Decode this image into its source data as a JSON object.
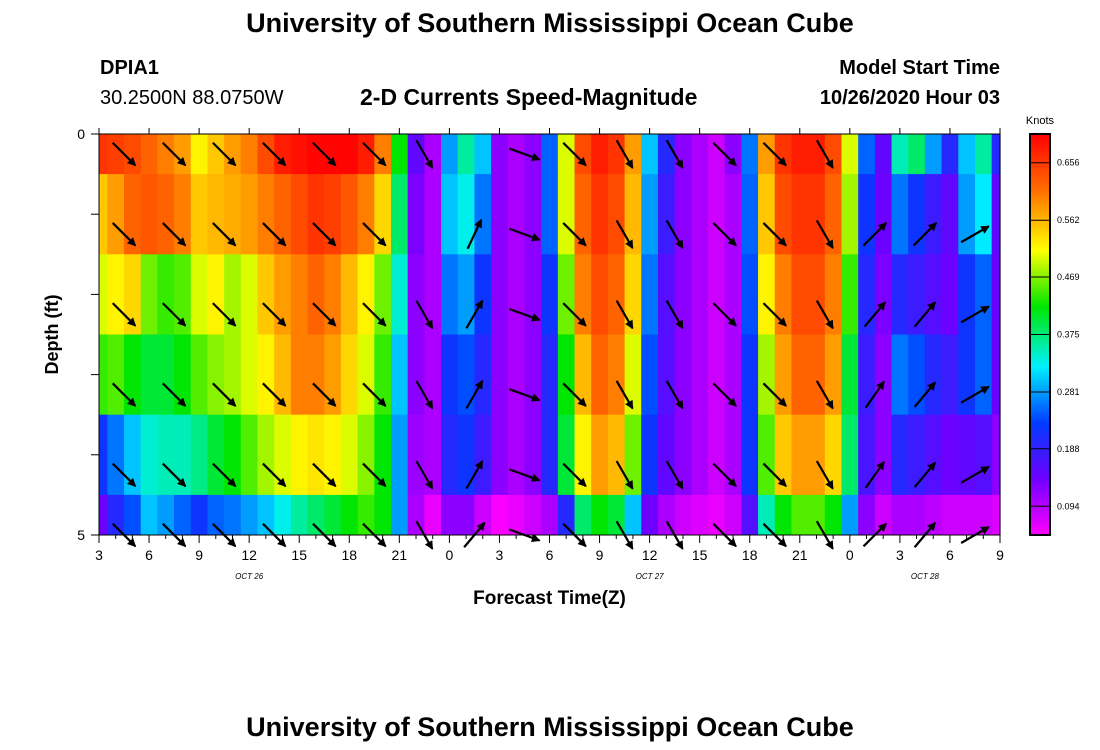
{
  "page": {
    "title": "University of Southern Mississippi Ocean Cube",
    "footer_title": "University of Southern Mississippi Ocean Cube",
    "station": "DPIA1",
    "coords": "30.2500N 88.0750W",
    "plot_title": "2-D Currents Speed-Magnitude",
    "model_start_label": "Model Start Time",
    "model_start_value": "10/26/2020 Hour 03"
  },
  "chart_data": {
    "type": "heatmap",
    "title": "2-D Currents Speed-Magnitude",
    "xlabel": "Forecast Time(Z)",
    "ylabel": "Depth (ft)",
    "x_range": [
      3,
      57
    ],
    "ylim": [
      0,
      5
    ],
    "y_ticks": [
      "0",
      "",
      "",
      "",
      "",
      "5"
    ],
    "x_ticks": [
      "3",
      "6",
      "9",
      "12",
      "15",
      "18",
      "21",
      "0",
      "3",
      "6",
      "9",
      "12",
      "15",
      "18",
      "21",
      "0",
      "3",
      "6",
      "9"
    ],
    "x_tick_hours": [
      3,
      6,
      9,
      12,
      15,
      18,
      21,
      24,
      27,
      30,
      33,
      36,
      39,
      42,
      45,
      48,
      51,
      54,
      57
    ],
    "date_labels": [
      {
        "text": "OCT  26",
        "hour": 12
      },
      {
        "text": "OCT  27",
        "hour": 36
      },
      {
        "text": "OCT  28",
        "hour": 52.5
      }
    ],
    "colorbar": {
      "title": "Knots",
      "ticks": [
        0.094,
        0.188,
        0.281,
        0.375,
        0.469,
        0.562,
        0.656
      ],
      "range": [
        0.047,
        0.703
      ]
    },
    "time_hours": [
      3,
      4,
      5,
      6,
      7,
      8,
      9,
      10,
      11,
      12,
      13,
      14,
      15,
      16,
      17,
      18,
      19,
      20,
      21,
      22,
      23,
      24,
      25,
      26,
      27,
      28,
      29,
      30,
      31,
      32,
      33,
      34,
      35,
      36,
      37,
      38,
      39,
      40,
      41,
      42,
      43,
      44,
      45,
      46,
      47,
      48,
      49,
      50,
      51,
      52,
      53,
      54,
      55,
      56,
      57
    ],
    "depth_rows": [
      "0-1",
      "1-2",
      "2-3",
      "3-4",
      "4-5"
    ],
    "speed_knots": [
      [
        0.66,
        0.65,
        0.64,
        0.62,
        0.6,
        0.58,
        0.52,
        0.55,
        0.58,
        0.6,
        0.64,
        0.68,
        0.69,
        0.7,
        0.7,
        0.7,
        0.68,
        0.6,
        0.42,
        0.15,
        0.1,
        0.28,
        0.36,
        0.3,
        0.12,
        0.1,
        0.12,
        0.25,
        0.5,
        0.64,
        0.68,
        0.66,
        0.58,
        0.3,
        0.2,
        0.12,
        0.1,
        0.08,
        0.12,
        0.26,
        0.58,
        0.66,
        0.68,
        0.68,
        0.64,
        0.5,
        0.25,
        0.15,
        0.35,
        0.38,
        0.28,
        0.2,
        0.3,
        0.36,
        0.2
      ],
      [
        0.55,
        0.58,
        0.62,
        0.63,
        0.62,
        0.6,
        0.55,
        0.56,
        0.57,
        0.58,
        0.6,
        0.62,
        0.64,
        0.66,
        0.65,
        0.63,
        0.6,
        0.54,
        0.38,
        0.13,
        0.1,
        0.3,
        0.33,
        0.26,
        0.12,
        0.1,
        0.12,
        0.25,
        0.5,
        0.62,
        0.66,
        0.64,
        0.56,
        0.28,
        0.18,
        0.12,
        0.1,
        0.08,
        0.1,
        0.25,
        0.55,
        0.64,
        0.66,
        0.66,
        0.62,
        0.48,
        0.22,
        0.14,
        0.26,
        0.22,
        0.18,
        0.15,
        0.28,
        0.32,
        0.15
      ],
      [
        0.5,
        0.52,
        0.54,
        0.46,
        0.44,
        0.45,
        0.5,
        0.52,
        0.48,
        0.5,
        0.55,
        0.58,
        0.6,
        0.62,
        0.6,
        0.56,
        0.52,
        0.46,
        0.34,
        0.12,
        0.1,
        0.26,
        0.28,
        0.22,
        0.12,
        0.1,
        0.12,
        0.22,
        0.46,
        0.6,
        0.64,
        0.62,
        0.54,
        0.26,
        0.16,
        0.12,
        0.1,
        0.08,
        0.1,
        0.24,
        0.52,
        0.6,
        0.64,
        0.64,
        0.6,
        0.44,
        0.2,
        0.13,
        0.2,
        0.18,
        0.16,
        0.14,
        0.22,
        0.25,
        0.14
      ],
      [
        0.44,
        0.45,
        0.42,
        0.4,
        0.4,
        0.42,
        0.45,
        0.47,
        0.48,
        0.5,
        0.52,
        0.56,
        0.6,
        0.6,
        0.58,
        0.54,
        0.5,
        0.44,
        0.3,
        0.12,
        0.1,
        0.22,
        0.24,
        0.2,
        0.12,
        0.1,
        0.12,
        0.2,
        0.42,
        0.56,
        0.62,
        0.6,
        0.5,
        0.24,
        0.16,
        0.12,
        0.1,
        0.08,
        0.1,
        0.22,
        0.48,
        0.58,
        0.62,
        0.62,
        0.58,
        0.4,
        0.18,
        0.12,
        0.26,
        0.24,
        0.2,
        0.18,
        0.22,
        0.25,
        0.14
      ],
      [
        0.22,
        0.26,
        0.3,
        0.34,
        0.35,
        0.35,
        0.37,
        0.4,
        0.42,
        0.45,
        0.48,
        0.5,
        0.52,
        0.53,
        0.52,
        0.5,
        0.47,
        0.42,
        0.28,
        0.11,
        0.1,
        0.2,
        0.22,
        0.18,
        0.12,
        0.1,
        0.12,
        0.2,
        0.4,
        0.52,
        0.58,
        0.56,
        0.46,
        0.22,
        0.15,
        0.12,
        0.1,
        0.08,
        0.1,
        0.22,
        0.45,
        0.55,
        0.58,
        0.58,
        0.54,
        0.38,
        0.17,
        0.12,
        0.2,
        0.18,
        0.16,
        0.14,
        0.15,
        0.16,
        0.12
      ]
    ],
    "bottom_row_speed_knots": [
      0.14,
      0.2,
      0.24,
      0.3,
      0.28,
      0.25,
      0.22,
      0.25,
      0.26,
      0.28,
      0.3,
      0.33,
      0.36,
      0.38,
      0.4,
      0.42,
      0.44,
      0.42,
      0.28,
      0.1,
      0.06,
      0.12,
      0.12,
      0.08,
      0.05,
      0.06,
      0.08,
      0.1,
      0.2,
      0.38,
      0.42,
      0.4,
      0.3,
      0.14,
      0.1,
      0.08,
      0.07,
      0.06,
      0.08,
      0.16,
      0.35,
      0.42,
      0.45,
      0.45,
      0.42,
      0.28,
      0.12,
      0.08,
      0.1,
      0.1,
      0.09,
      0.08,
      0.08,
      0.08,
      0.07
    ],
    "vector_hours": [
      4.5,
      7.5,
      10.5,
      13.5,
      16.5,
      19.5,
      22.5,
      25.5,
      28.5,
      31.5,
      34.5,
      37.5,
      40.5,
      43.5,
      46.5,
      49.5,
      52.5,
      55.5
    ],
    "vector_depths_ft": [
      0.25,
      1.25,
      2.25,
      3.25,
      4.25,
      5.0
    ],
    "vector_direction_deg": [
      [
        135,
        135,
        135,
        135,
        135,
        135,
        150,
        null,
        110,
        135,
        150,
        150,
        135,
        135,
        150,
        null,
        null,
        null
      ],
      [
        135,
        135,
        135,
        135,
        135,
        135,
        null,
        25,
        110,
        135,
        150,
        150,
        135,
        135,
        150,
        45,
        45,
        60
      ],
      [
        135,
        135,
        135,
        135,
        135,
        135,
        150,
        30,
        110,
        135,
        150,
        150,
        135,
        135,
        150,
        40,
        40,
        60
      ],
      [
        135,
        135,
        135,
        135,
        135,
        135,
        150,
        30,
        110,
        135,
        150,
        150,
        135,
        135,
        150,
        35,
        40,
        60
      ],
      [
        135,
        135,
        135,
        135,
        135,
        135,
        150,
        30,
        110,
        135,
        150,
        150,
        135,
        135,
        150,
        35,
        40,
        60
      ],
      [
        135,
        135,
        135,
        135,
        135,
        135,
        150,
        40,
        110,
        135,
        150,
        150,
        135,
        135,
        150,
        45,
        40,
        60
      ]
    ]
  }
}
